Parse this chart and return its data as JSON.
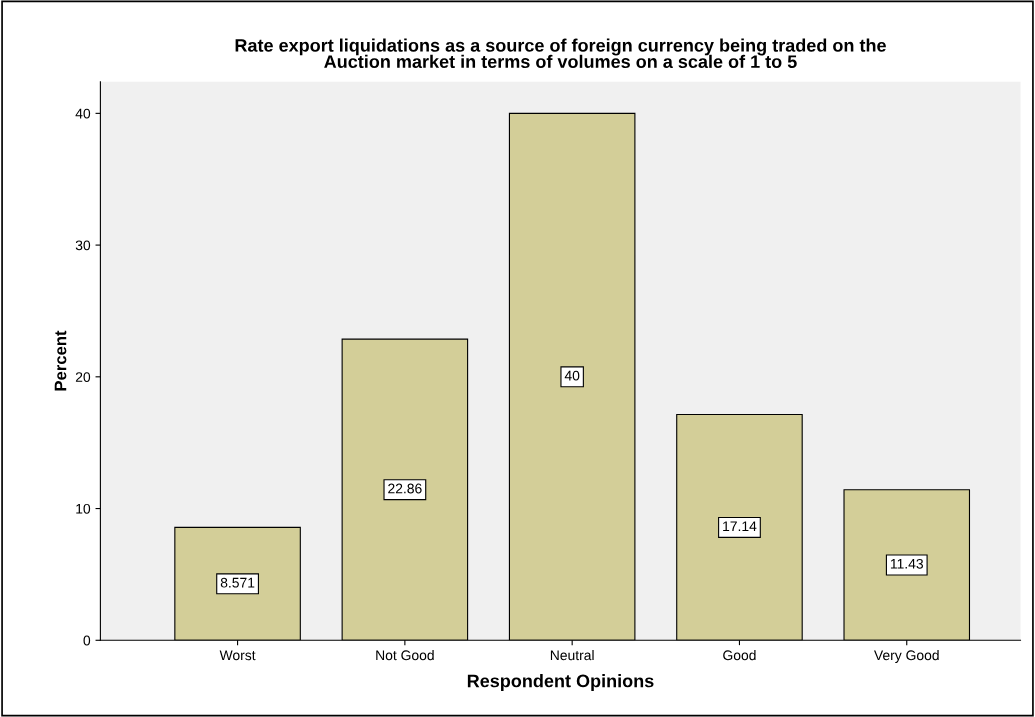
{
  "chart_data": {
    "type": "bar",
    "title": "Rate export liquidations as a source of foreign currency being traded on the\nAuction market in terms of volumes on a scale of 1 to 5",
    "xlabel": "Respondent Opinions",
    "ylabel": "Percent",
    "categories": [
      "Worst",
      "Not Good",
      "Neutral",
      "Good",
      "Very Good"
    ],
    "values": [
      8.571,
      22.86,
      40,
      17.14,
      11.43
    ],
    "color": "#d3ce98",
    "ylim": [
      0,
      42.4
    ],
    "yticks": [
      0,
      10,
      20,
      30,
      40
    ],
    "data_labels": true,
    "grid": false,
    "legend": false
  }
}
